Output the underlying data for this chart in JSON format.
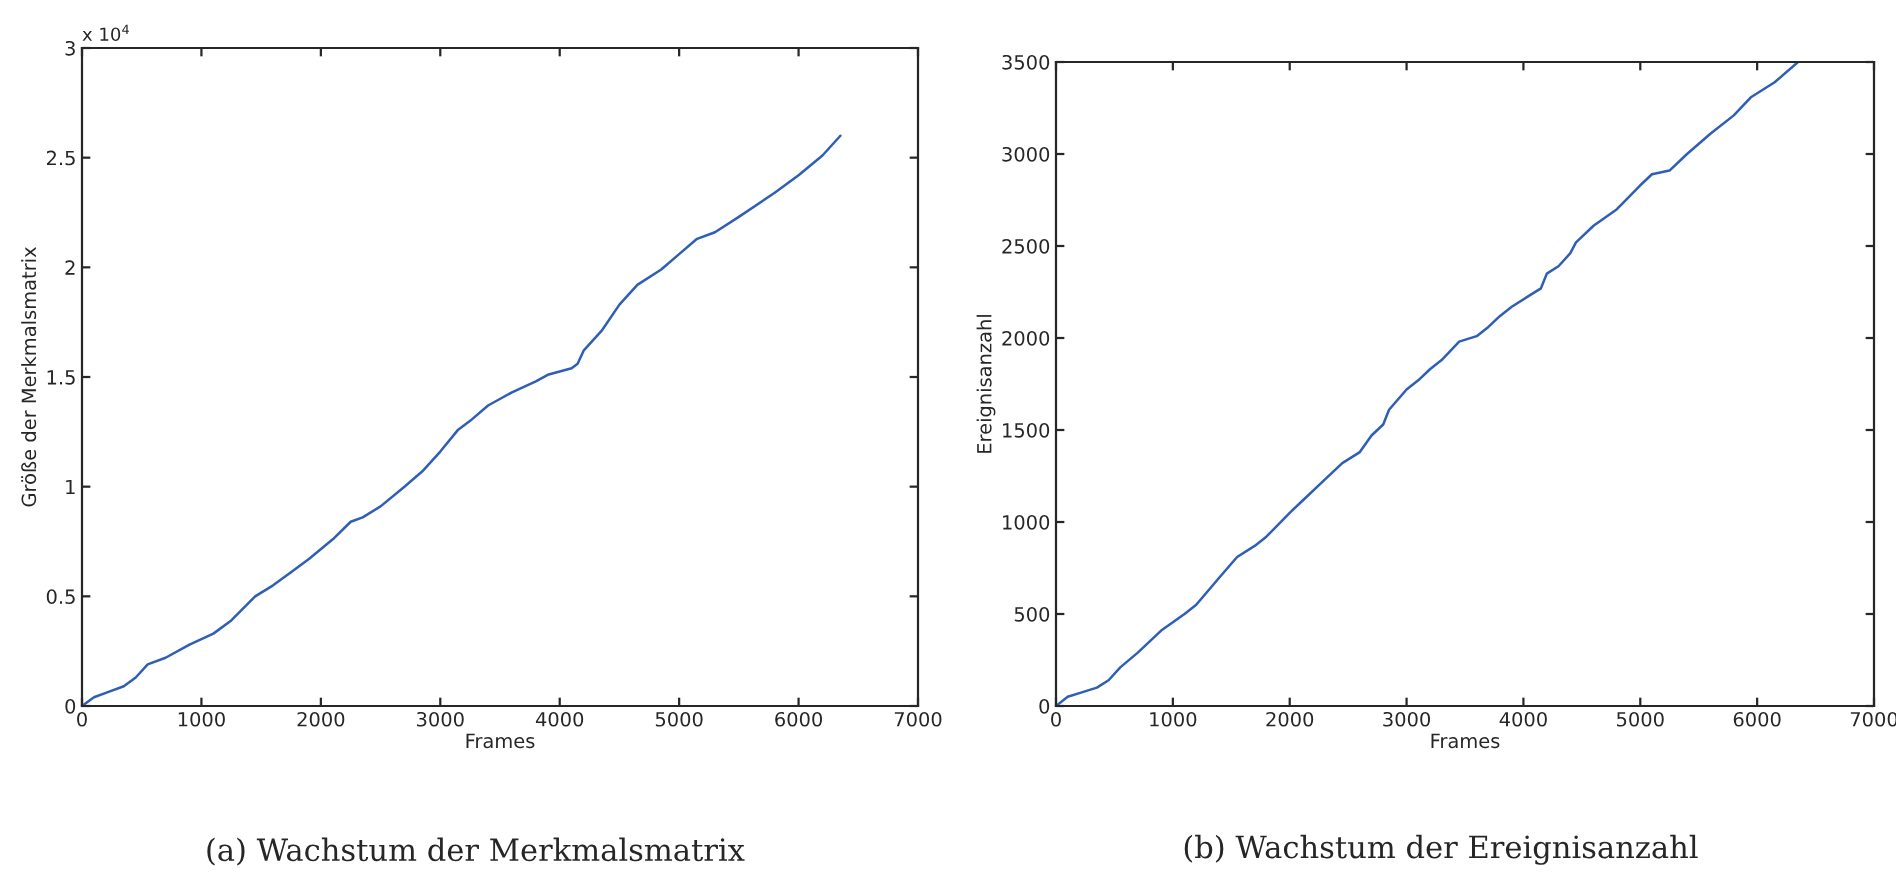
{
  "chart_data": [
    {
      "type": "line",
      "xlabel": "Frames",
      "ylabel": "Größe der Merkmalsmatrix",
      "annotations": [
        "x 10$^{4}$",
        "(a) Wachstum der Merkmalsmatrix"
      ],
      "xlim": [
        0,
        7000
      ],
      "xticks": [
        0,
        1000,
        2000,
        3000,
        4000,
        5000,
        6000,
        7000
      ],
      "ylim": [
        0,
        3
      ],
      "yticks": [
        0,
        0.5,
        1,
        1.5,
        2,
        2.5,
        3
      ],
      "series": [
        {
          "color": "#2e5fb5",
          "x": [
            0,
            100,
            200,
            350,
            450,
            550,
            700,
            900,
            1100,
            1250,
            1450,
            1600,
            1750,
            1900,
            2100,
            2250,
            2350,
            2500,
            2700,
            2850,
            3000,
            3150,
            3250,
            3400,
            3600,
            3800,
            3900,
            4100,
            4150,
            4200,
            4350,
            4500,
            4650,
            4850,
            5000,
            5150,
            5300,
            5500,
            5800,
            6000,
            6200,
            6350
          ],
          "values": [
            0,
            0.04,
            0.06,
            0.09,
            0.13,
            0.19,
            0.22,
            0.28,
            0.33,
            0.39,
            0.5,
            0.55,
            0.61,
            0.67,
            0.76,
            0.84,
            0.86,
            0.91,
            1.0,
            1.07,
            1.16,
            1.26,
            1.3,
            1.37,
            1.43,
            1.48,
            1.51,
            1.54,
            1.56,
            1.62,
            1.71,
            1.83,
            1.92,
            1.99,
            2.06,
            2.13,
            2.16,
            2.23,
            2.34,
            2.42,
            2.51,
            2.6
          ]
        }
      ]
    },
    {
      "type": "line",
      "xlabel": "Frames",
      "ylabel": "Ereignisanzahl",
      "annotations": [
        "(b) Wachstum der Ereignisanzahl"
      ],
      "xlim": [
        0,
        7000
      ],
      "xticks": [
        0,
        1000,
        2000,
        3000,
        4000,
        5000,
        6000,
        7000
      ],
      "ylim": [
        0,
        3500
      ],
      "yticks": [
        0,
        500,
        1000,
        1500,
        2000,
        2500,
        3000,
        3500
      ],
      "series": [
        {
          "color": "#2e5fb5",
          "x": [
            0,
            100,
            200,
            350,
            450,
            550,
            700,
            900,
            1100,
            1200,
            1400,
            1550,
            1700,
            1800,
            2000,
            2100,
            2300,
            2450,
            2600,
            2700,
            2800,
            2850,
            3000,
            3100,
            3200,
            3300,
            3450,
            3600,
            3700,
            3800,
            3900,
            4050,
            4150,
            4200,
            4300,
            4400,
            4450,
            4600,
            4800,
            5000,
            5100,
            5250,
            5400,
            5600,
            5800,
            5950,
            6150,
            6350
          ],
          "values": [
            0,
            50,
            70,
            100,
            140,
            210,
            290,
            410,
            500,
            550,
            700,
            810,
            870,
            920,
            1050,
            1110,
            1230,
            1320,
            1380,
            1470,
            1530,
            1610,
            1720,
            1770,
            1830,
            1880,
            1980,
            2010,
            2060,
            2120,
            2170,
            2230,
            2270,
            2350,
            2390,
            2460,
            2520,
            2610,
            2700,
            2830,
            2890,
            2910,
            3000,
            3110,
            3210,
            3310,
            3390,
            3500
          ]
        }
      ]
    }
  ]
}
